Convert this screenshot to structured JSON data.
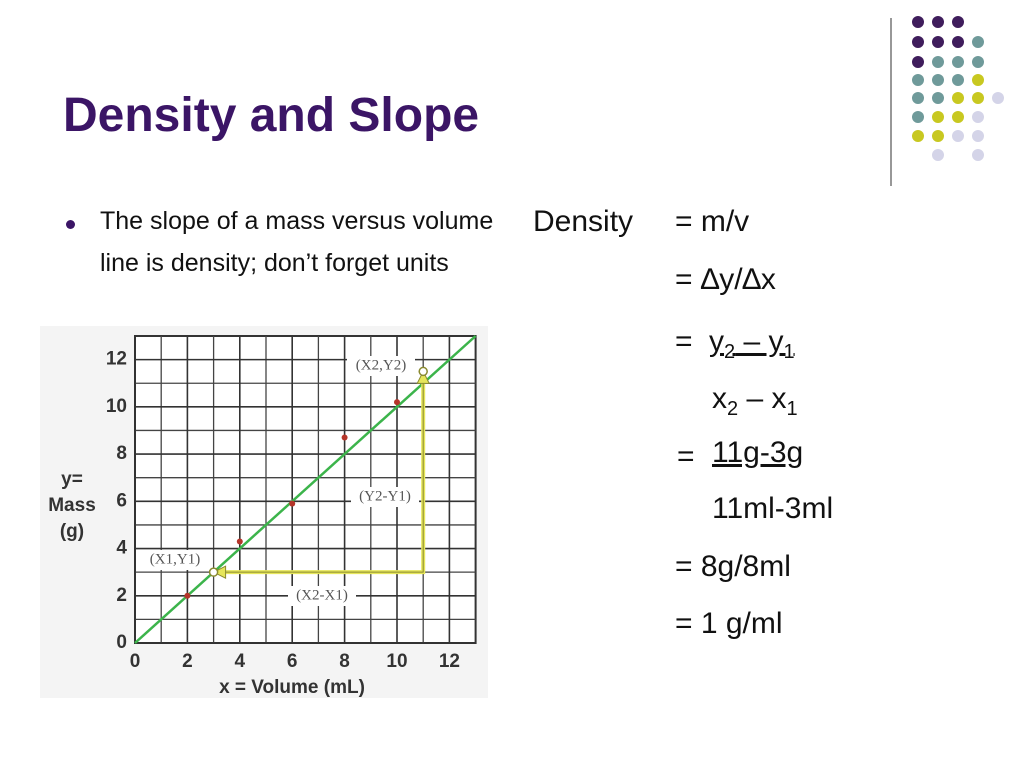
{
  "title": "Density and Slope",
  "bullets": [
    "The slope of a mass versus volume line is density; don’t forget units"
  ],
  "equations": {
    "lhs": "Density",
    "eq1": "= m/v",
    "eq2": "= ∆y/∆x",
    "frac1": {
      "eq": "=",
      "num": [
        "y",
        "2",
        " – y",
        "1"
      ],
      "den": [
        "x",
        "2",
        " – x",
        "1"
      ]
    },
    "frac2": {
      "eq": "=",
      "num": "11g-3g",
      "den": "11ml-3ml"
    },
    "eq3": "= 8g/8ml",
    "eq4": "= 1 g/ml"
  },
  "chart_data": {
    "type": "scatter",
    "x_label": "x = Volume (mL)",
    "y_label": [
      "y=",
      "Mass",
      "(g)"
    ],
    "xlim": [
      0,
      13
    ],
    "ylim": [
      0,
      13
    ],
    "xticks": [
      0,
      2,
      4,
      6,
      8,
      10,
      12
    ],
    "yticks": [
      0,
      2,
      4,
      6,
      8,
      10,
      12
    ],
    "grid": true,
    "series": [
      {
        "type": "line",
        "color": "#3cb44b",
        "x": [
          0,
          13
        ],
        "values": [
          0,
          13
        ]
      },
      {
        "type": "arrow",
        "color": "#e6e65a",
        "x": [
          11,
          11,
          3
        ],
        "values": [
          11.5,
          3,
          3
        ]
      },
      {
        "type": "scatter",
        "color": "#b5352a",
        "x": [
          2,
          4,
          6,
          8,
          10
        ],
        "values": [
          2,
          4.3,
          5.9,
          8.7,
          10.2
        ]
      }
    ],
    "annotations": [
      "(X2,Y2)",
      "(Y2-Y1)",
      "(X1,Y1)",
      "(X2-X1)"
    ]
  }
}
